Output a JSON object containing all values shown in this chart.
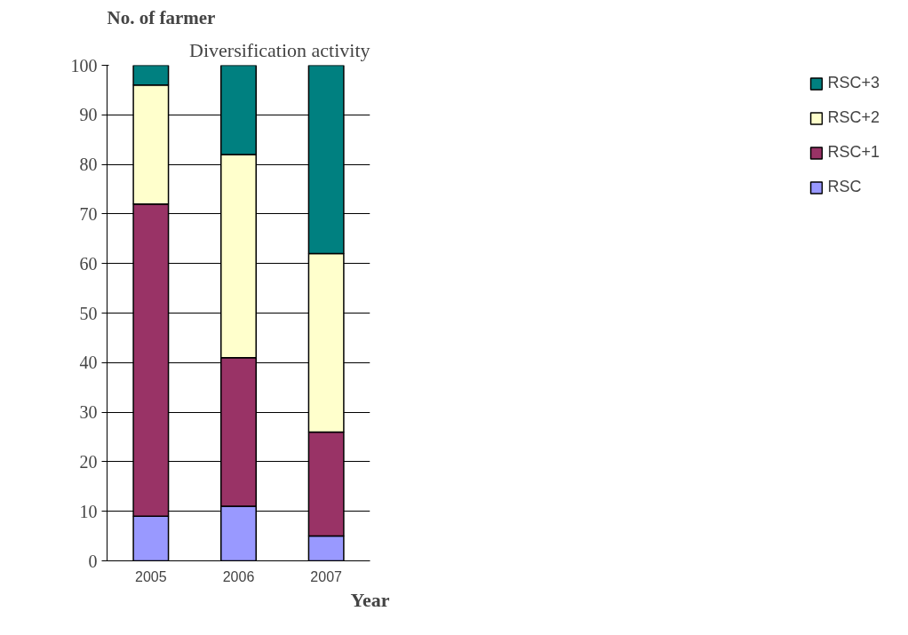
{
  "chart_data": {
    "type": "bar",
    "stacked": true,
    "title": "Diversification activity",
    "ylabel": "No. of farmer",
    "xlabel": "Year",
    "categories": [
      "2005",
      "2006",
      "2007"
    ],
    "series": [
      {
        "name": "RSC",
        "color": "#9999ff",
        "values": [
          9,
          11,
          5
        ]
      },
      {
        "name": "RSC+1",
        "color": "#993366",
        "values": [
          63,
          30,
          21
        ]
      },
      {
        "name": "RSC+2",
        "color": "#ffffcc",
        "values": [
          24,
          41,
          36
        ]
      },
      {
        "name": "RSC+3",
        "color": "#008080",
        "values": [
          4,
          18,
          38
        ]
      }
    ],
    "ylim": [
      0,
      100
    ],
    "yticks": [
      0,
      10,
      20,
      30,
      40,
      50,
      60,
      70,
      80,
      90,
      100
    ],
    "grid": "y",
    "legend": "right"
  }
}
